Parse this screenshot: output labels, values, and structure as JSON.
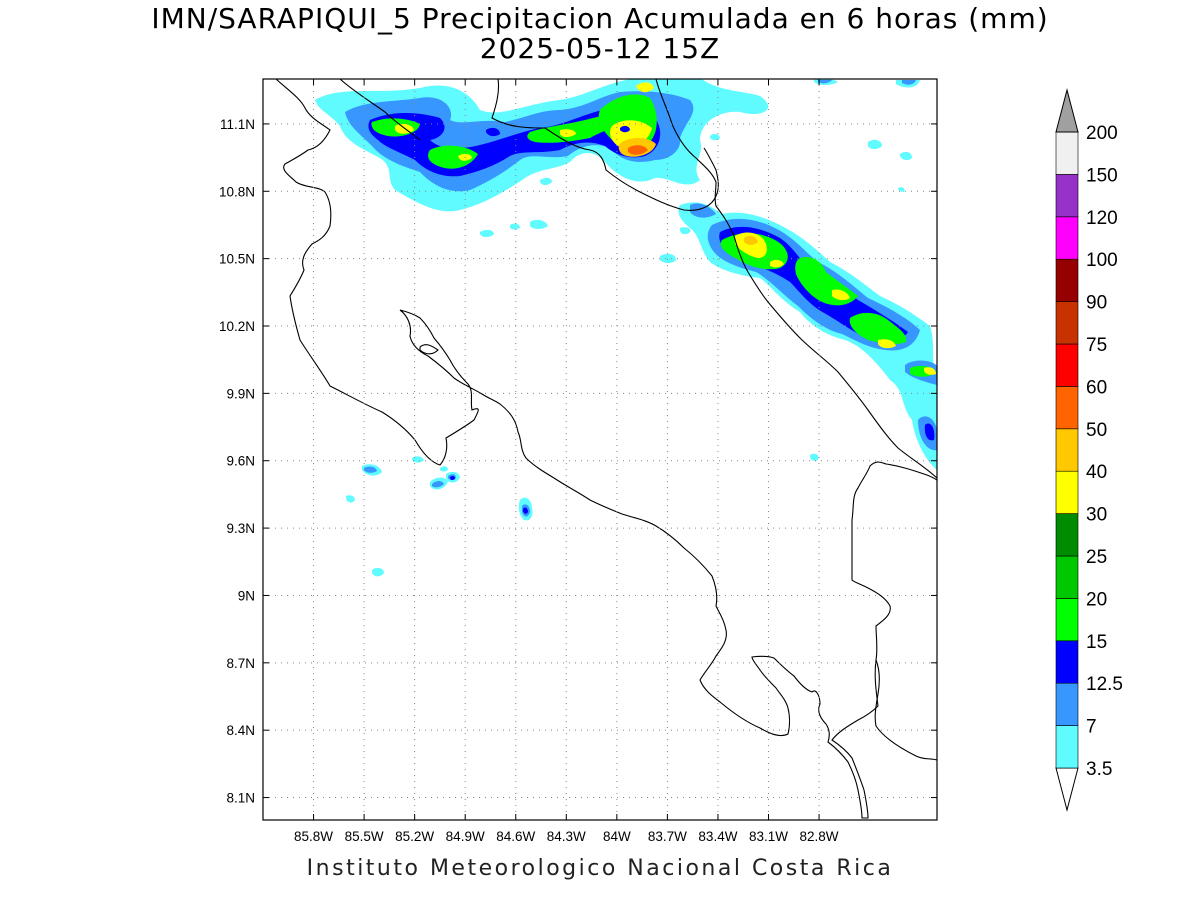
{
  "title": "IMN/SARAPIQUI_5 Precipitacion Acumulada en 6 horas (mm)",
  "subtitle": "2025-05-12 15Z",
  "footer": "Instituto Meteorologico Nacional Costa Rica",
  "map": {
    "lon_range": [
      -86.1,
      -82.1
    ],
    "lat_range": [
      8.0,
      11.3
    ],
    "lon_ticks": [
      "85.8W",
      "85.5W",
      "85.2W",
      "84.9W",
      "84.6W",
      "84.3W",
      "84W",
      "83.7W",
      "83.4W",
      "83.1W",
      "82.8W"
    ],
    "lat_ticks": [
      "11.1N",
      "10.8N",
      "10.5N",
      "10.2N",
      "9.9N",
      "9.6N",
      "9.3N",
      "9N",
      "8.7N",
      "8.4N",
      "8.1N"
    ]
  },
  "colorbar": {
    "levels": [
      "3.5",
      "7",
      "12.5",
      "15",
      "20",
      "25",
      "30",
      "40",
      "50",
      "60",
      "75",
      "90",
      "100",
      "120",
      "150",
      "200"
    ],
    "colors": [
      "#ffffff",
      "#5ffbff",
      "#3896ff",
      "#0000ff",
      "#00ff00",
      "#00c800",
      "#008c00",
      "#ffff00",
      "#ffc800",
      "#ff6400",
      "#ff0000",
      "#c83200",
      "#960000",
      "#ff00ff",
      "#9632c8",
      "#f0f0f0",
      "#a0a0a0"
    ]
  },
  "precip_colors": {
    "light": "#5ffbff",
    "moderate": "#3896ff",
    "heavy": "#0000ff",
    "green": "#00ff00",
    "green2": "#00c800",
    "yellow": "#ffff00",
    "gold": "#ffc800",
    "orange": "#ff6400"
  }
}
